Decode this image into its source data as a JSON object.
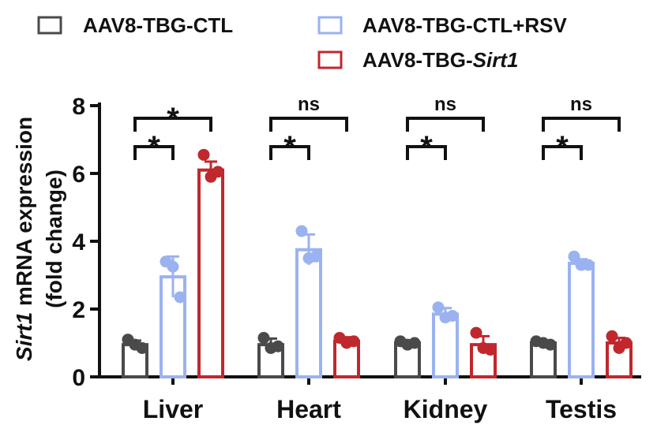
{
  "chart_data": {
    "type": "bar",
    "title": "",
    "xlabel": "",
    "ylabel": {
      "gene": "Sirt1",
      "text": " mRNA expression",
      "line2": "(fold change)"
    },
    "ylim": [
      0,
      8
    ],
    "yticks": [
      "0",
      "2",
      "4",
      "6",
      "8"
    ],
    "categories": [
      "Liver",
      "Heart",
      "Kidney",
      "Testis"
    ],
    "legend_placement": "top",
    "series": [
      {
        "name": "AAV8-TBG-CTL",
        "color": "#4a4a4a",
        "values": [
          0.95,
          0.95,
          1.0,
          1.0
        ],
        "errors": [
          0.12,
          0.18,
          0.06,
          0.05
        ],
        "points": [
          [
            1.1,
            0.95,
            0.85
          ],
          [
            1.15,
            0.85,
            0.9
          ],
          [
            1.05,
            0.95,
            1.0
          ],
          [
            1.05,
            1.0,
            0.95
          ]
        ]
      },
      {
        "name": "AAV8-TBG-CTL+RSV",
        "color": "#9bb2f0",
        "values": [
          2.95,
          3.75,
          1.85,
          3.35
        ],
        "errors": [
          0.6,
          0.45,
          0.18,
          0.12
        ],
        "points": [
          [
            3.4,
            3.25,
            2.35
          ],
          [
            4.3,
            3.5,
            3.55
          ],
          [
            2.05,
            1.75,
            1.8
          ],
          [
            3.55,
            3.3,
            3.3
          ]
        ]
      },
      {
        "name": {
          "prefix": "AAV8-TBG-",
          "italic": "Sirt1"
        },
        "color": "#c0282d",
        "values": [
          6.1,
          1.05,
          0.95,
          1.0
        ],
        "errors": [
          0.25,
          0.12,
          0.25,
          0.15
        ],
        "points": [
          [
            6.55,
            5.9,
            6.05
          ],
          [
            1.15,
            1.0,
            1.05
          ],
          [
            1.3,
            0.85,
            0.8
          ],
          [
            1.2,
            0.85,
            1.0
          ]
        ]
      }
    ],
    "significance": [
      {
        "category": "Liver",
        "comparison": "CTL vs CTL+RSV",
        "label": "*"
      },
      {
        "category": "Liver",
        "comparison": "CTL vs Sirt1",
        "label": "*"
      },
      {
        "category": "Heart",
        "comparison": "CTL vs CTL+RSV",
        "label": "*"
      },
      {
        "category": "Heart",
        "comparison": "CTL vs Sirt1",
        "label": "ns"
      },
      {
        "category": "Kidney",
        "comparison": "CTL vs CTL+RSV",
        "label": "*"
      },
      {
        "category": "Kidney",
        "comparison": "CTL vs Sirt1",
        "label": "ns"
      },
      {
        "category": "Testis",
        "comparison": "CTL vs CTL+RSV",
        "label": "*"
      },
      {
        "category": "Testis",
        "comparison": "CTL vs Sirt1",
        "label": "ns"
      }
    ]
  }
}
